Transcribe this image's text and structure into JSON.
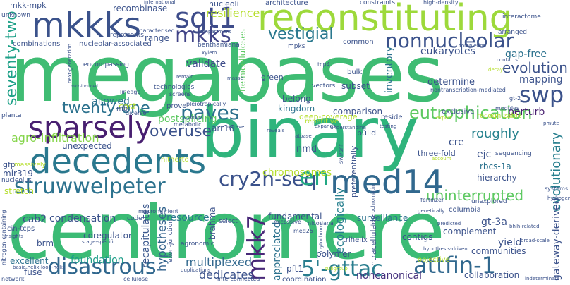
{
  "palette": [
    "#440154",
    "#472d7b",
    "#3b528b",
    "#2c728e",
    "#21918c",
    "#28ae80",
    "#5ec962",
    "#addc30",
    "#fde725"
  ],
  "words": [
    {
      "text": "megabases",
      "color": "#3fbc73"
    },
    {
      "text": "centromere",
      "color": "#3bbb75"
    },
    {
      "text": "binary",
      "color": "#2fb47c"
    },
    {
      "text": "reconstituting",
      "color": "#9dd93b"
    },
    {
      "text": "decedents",
      "color": "#2a788e"
    },
    {
      "text": "mkkks",
      "color": "#3b528b"
    },
    {
      "text": "struwwelpeter",
      "color": "#2c728e"
    },
    {
      "text": "med14",
      "color": "#31688e"
    },
    {
      "text": "sparsely",
      "color": "#481f70"
    },
    {
      "text": "sgt1",
      "color": "#3e4c8a"
    },
    {
      "text": "mkks",
      "color": "#414487"
    },
    {
      "text": "cry2h-seq",
      "color": "#3b528b"
    },
    {
      "text": "disastrous",
      "color": "#31688e"
    },
    {
      "text": "attfin-1",
      "color": "#31688e"
    },
    {
      "text": "5'-gttac",
      "color": "#287d8e"
    },
    {
      "text": "swp",
      "color": "#3b528b"
    },
    {
      "text": "nonnucleolar",
      "color": "#3b528b"
    },
    {
      "text": "eutrophication",
      "color": "#5ec962"
    },
    {
      "text": "en",
      "color": "#22a884"
    },
    {
      "text": "mkk7",
      "color": "#482878"
    },
    {
      "text": "paves",
      "color": "#2d708e"
    },
    {
      "text": "vestigial",
      "color": "#2a788e"
    },
    {
      "text": "overuse",
      "color": "#3b528b"
    },
    {
      "text": "uninterrupted",
      "color": "#5ec962"
    },
    {
      "text": "seventy-two",
      "color": "#1fa188"
    },
    {
      "text": "twenty-one",
      "color": "#2c728e"
    },
    {
      "text": "agro-infiltration",
      "color": "#85d54a"
    },
    {
      "text": "chromosomes",
      "color": "#b5de2b"
    },
    {
      "text": "resilience",
      "color": "#b5de2b"
    },
    {
      "text": "evolution",
      "color": "#3b528b"
    },
    {
      "text": "evolutionary",
      "color": "#277f8e"
    },
    {
      "text": "recapitulates",
      "color": "#39568c"
    },
    {
      "text": "hypotheses",
      "color": "#33638d"
    },
    {
      "text": "multiplexed",
      "color": "#31688e"
    },
    {
      "text": "dedicates",
      "color": "#3b528b"
    },
    {
      "text": "noncanonical",
      "color": "#46327e"
    },
    {
      "text": "ecologically",
      "color": "#277f8e"
    },
    {
      "text": "foundation",
      "color": "#1f9e89"
    },
    {
      "text": "roughly",
      "color": "#26828e"
    },
    {
      "text": "perturb",
      "color": "#481f70"
    },
    {
      "text": "gap-free",
      "color": "#2c728e"
    },
    {
      "text": "mapping",
      "color": "#3b528b"
    },
    {
      "text": "eukaryotes",
      "color": "#3b528b"
    },
    {
      "text": "validate",
      "color": "#3e4c8a"
    },
    {
      "text": "postsplicing",
      "color": "#5ec962"
    },
    {
      "text": "recombinase",
      "color": "#3b528b"
    },
    {
      "text": "rbcs-1a",
      "color": "#2c728e"
    },
    {
      "text": "comparison",
      "color": "#3b528b"
    },
    {
      "text": "inventory",
      "color": "#2c728e"
    },
    {
      "text": "determine",
      "color": "#3b528b"
    },
    {
      "text": "kingdom",
      "color": "#2c728e"
    },
    {
      "text": "allowed",
      "color": "#2c728e"
    },
    {
      "text": "unexpected",
      "color": "#3b528b"
    },
    {
      "text": "condensation",
      "color": "#3b528b"
    },
    {
      "text": "resource",
      "color": "#2a788e"
    },
    {
      "text": "fundamental",
      "color": "#3b528b"
    },
    {
      "text": "surveillance",
      "color": "#2c728e"
    },
    {
      "text": "collaboration",
      "color": "#3b528b"
    },
    {
      "text": "gateway-derived",
      "color": "#3b528b"
    },
    {
      "text": "appreciated",
      "color": "#2c728e"
    },
    {
      "text": "coordination",
      "color": "#3b528b"
    },
    {
      "text": "pft1",
      "color": "#3b528b"
    },
    {
      "text": "brahma",
      "color": "#3b528b"
    },
    {
      "text": "coregulator",
      "color": "#3b528b"
    },
    {
      "text": "excellent",
      "color": "#2c728e"
    },
    {
      "text": "fuse",
      "color": "#3b528b"
    },
    {
      "text": "cab2",
      "color": "#3b528b"
    },
    {
      "text": "brm",
      "color": "#3b528b"
    },
    {
      "text": "cin-tcps",
      "color": "#3b528b"
    },
    {
      "text": "gt-3a",
      "color": "#3b528b"
    },
    {
      "text": "yield",
      "color": "#3b528b"
    },
    {
      "text": "complement",
      "color": "#3b528b"
    },
    {
      "text": "contigs",
      "color": "#3b528b"
    },
    {
      "text": "communities",
      "color": "#3b528b"
    },
    {
      "text": "nmd",
      "color": "#3b528b"
    },
    {
      "text": "cre",
      "color": "#3b528b"
    },
    {
      "text": "ejc",
      "color": "#3b528b"
    },
    {
      "text": "arr16",
      "color": "#3b528b"
    },
    {
      "text": "range",
      "color": "#3b528b"
    },
    {
      "text": "nucleoli",
      "color": "#3b528b"
    },
    {
      "text": "subset",
      "color": "#3b528b"
    },
    {
      "text": "belong",
      "color": "#3b528b"
    },
    {
      "text": "common",
      "color": "#3b528b"
    },
    {
      "text": "hemicelluloses",
      "color": "#5ec962"
    },
    {
      "text": "hierarchy",
      "color": "#3b528b"
    },
    {
      "text": "three-fold",
      "color": "#3b528b"
    },
    {
      "text": "stretch",
      "color": "#b5de2b"
    },
    {
      "text": "mir319",
      "color": "#3b528b"
    },
    {
      "text": "gfp",
      "color": "#3b528b"
    },
    {
      "text": "cost",
      "color": "#b5de2b"
    },
    {
      "text": "build",
      "color": "#3b528b"
    },
    {
      "text": "prove",
      "color": "#3b528b"
    },
    {
      "text": "green",
      "color": "#3b528b"
    },
    {
      "text": "bulk",
      "color": "#3b528b"
    },
    {
      "text": "mkk-mpk",
      "color": "#3b528b"
    },
    {
      "text": "combinations",
      "color": "#3b528b"
    },
    {
      "text": "encompassing",
      "color": "#3b528b"
    },
    {
      "text": "nucleolar-associated",
      "color": "#3b528b"
    },
    {
      "text": "represents",
      "color": "#3b528b"
    },
    {
      "text": "architecture",
      "color": "#3b528b"
    },
    {
      "text": "constraints",
      "color": "#3b528b"
    },
    {
      "text": "interactome",
      "color": "#3b528b"
    },
    {
      "text": "arranged",
      "color": "#3b528b"
    },
    {
      "text": "technologies",
      "color": "#3b528b"
    },
    {
      "text": "vectors",
      "color": "#3b528b"
    },
    {
      "text": "repetitive",
      "color": "#b5de2b"
    },
    {
      "text": "deep-coverage",
      "color": "#b5de2b"
    },
    {
      "text": "exclusive",
      "color": "#3b528b"
    },
    {
      "text": "reside",
      "color": "#3b528b"
    },
    {
      "text": "select",
      "color": "#3b528b"
    },
    {
      "text": "code",
      "color": "#3b528b"
    },
    {
      "text": "preferentially",
      "color": "#3b528b"
    },
    {
      "text": "intracellularly",
      "color": "#3b528b"
    },
    {
      "text": "objective",
      "color": "#b5de2b"
    },
    {
      "text": "polymer",
      "color": "#3b528b"
    },
    {
      "text": "trihelix",
      "color": "#3b528b"
    },
    {
      "text": "unknown",
      "color": "#3b528b"
    },
    {
      "text": "planta",
      "color": "#3b528b"
    },
    {
      "text": "nucleolus",
      "color": "#3b528b"
    },
    {
      "text": "massively",
      "color": "#b5de2b"
    },
    {
      "text": "basic-helix-loop-helix",
      "color": "#3b528b"
    },
    {
      "text": "nitrogen-containing",
      "color": "#3b528b"
    },
    {
      "text": "network",
      "color": "#3b528b"
    },
    {
      "text": "sequencing",
      "color": "#3b528b"
    },
    {
      "text": "fertilizer",
      "color": "#3b528b"
    },
    {
      "text": "unexplored",
      "color": "#3b528b"
    },
    {
      "text": "columbia",
      "color": "#3b528b"
    },
    {
      "text": "recognizable",
      "color": "#b5de2b"
    },
    {
      "text": "med25",
      "color": "#3b528b"
    },
    {
      "text": "lineage",
      "color": "#3b528b"
    },
    {
      "text": "metabolic",
      "color": "#3b528b"
    },
    {
      "text": "diverse",
      "color": "#3b528b"
    },
    {
      "text": "unravel",
      "color": "#3b528b"
    },
    {
      "text": "reveals",
      "color": "#3b528b"
    },
    {
      "text": "nicotiana",
      "color": "#3b528b"
    },
    {
      "text": "excessive",
      "color": "#3b528b"
    },
    {
      "text": "exon-junction",
      "color": "#3b528b"
    },
    {
      "text": "tcp4",
      "color": "#3b528b"
    },
    {
      "text": "mpks",
      "color": "#3b528b"
    },
    {
      "text": "high-density",
      "color": "#3b528b"
    },
    {
      "text": "international",
      "color": "#3b528b"
    },
    {
      "text": "benthamiana",
      "color": "#3b528b"
    },
    {
      "text": "characterised",
      "color": "#3b528b"
    },
    {
      "text": "mb",
      "color": "#3b528b"
    },
    {
      "text": "screens",
      "color": "#3b528b"
    },
    {
      "text": "nontranscription-mediated",
      "color": "#3b528b"
    },
    {
      "text": "pleiotropically",
      "color": "#3b528b"
    },
    {
      "text": "macronutrient",
      "color": "#3b528b"
    },
    {
      "text": "agronomic",
      "color": "#3b528b"
    },
    {
      "text": "interconnected",
      "color": "#3b528b"
    },
    {
      "text": "hitherto",
      "color": "#b5de2b"
    },
    {
      "text": "duplications",
      "color": "#3b528b"
    },
    {
      "text": "cellulose",
      "color": "#3b528b"
    },
    {
      "text": "gt-2",
      "color": "#3b528b"
    },
    {
      "text": "swi/snf",
      "color": "#3b528b"
    },
    {
      "text": "modules",
      "color": "#3b528b"
    },
    {
      "text": "systems",
      "color": "#3b528b"
    },
    {
      "text": "broad-scale",
      "color": "#3b528b"
    },
    {
      "text": "hydrogen",
      "color": "#3b528b"
    },
    {
      "text": "indeterminate",
      "color": "#3b528b"
    },
    {
      "text": "contacts",
      "color": "#3b528b"
    },
    {
      "text": "completion",
      "color": "#3b528b"
    },
    {
      "text": "insights",
      "color": "#3b528b"
    },
    {
      "text": "understanding",
      "color": "#3b528b"
    },
    {
      "text": "testing",
      "color": "#3b528b"
    },
    {
      "text": "heterochromatin",
      "color": "#3b528b"
    },
    {
      "text": "subgroup",
      "color": "#b5de2b"
    },
    {
      "text": "hypothesis-driven",
      "color": "#3b528b"
    },
    {
      "text": "genetically",
      "color": "#3b528b"
    },
    {
      "text": "predicted",
      "color": "#3b528b"
    },
    {
      "text": "bhlh-related",
      "color": "#3b528b"
    },
    {
      "text": "phytochrome",
      "color": "#3b528b"
    },
    {
      "text": "stage-specific",
      "color": "#3b528b"
    },
    {
      "text": "compartment",
      "color": "#3b528b"
    },
    {
      "text": "xylem",
      "color": "#3b528b"
    },
    {
      "text": "remain",
      "color": "#3b528b"
    },
    {
      "text": "masse",
      "color": "#3b528b"
    },
    {
      "text": "expands",
      "color": "#3b528b"
    },
    {
      "text": "atpase",
      "color": "#3b528b"
    },
    {
      "text": "account",
      "color": "#b5de2b"
    },
    {
      "text": "export",
      "color": "#b5de2b"
    },
    {
      "text": "decay",
      "color": "#b5de2b"
    },
    {
      "text": "pmute",
      "color": "#3b528b"
    },
    {
      "text": "next-generation",
      "color": "#3b528b"
    },
    {
      "text": "mkk-induced",
      "color": "#3b528b"
    },
    {
      "text": "homo",
      "color": "#3b528b"
    }
  ]
}
